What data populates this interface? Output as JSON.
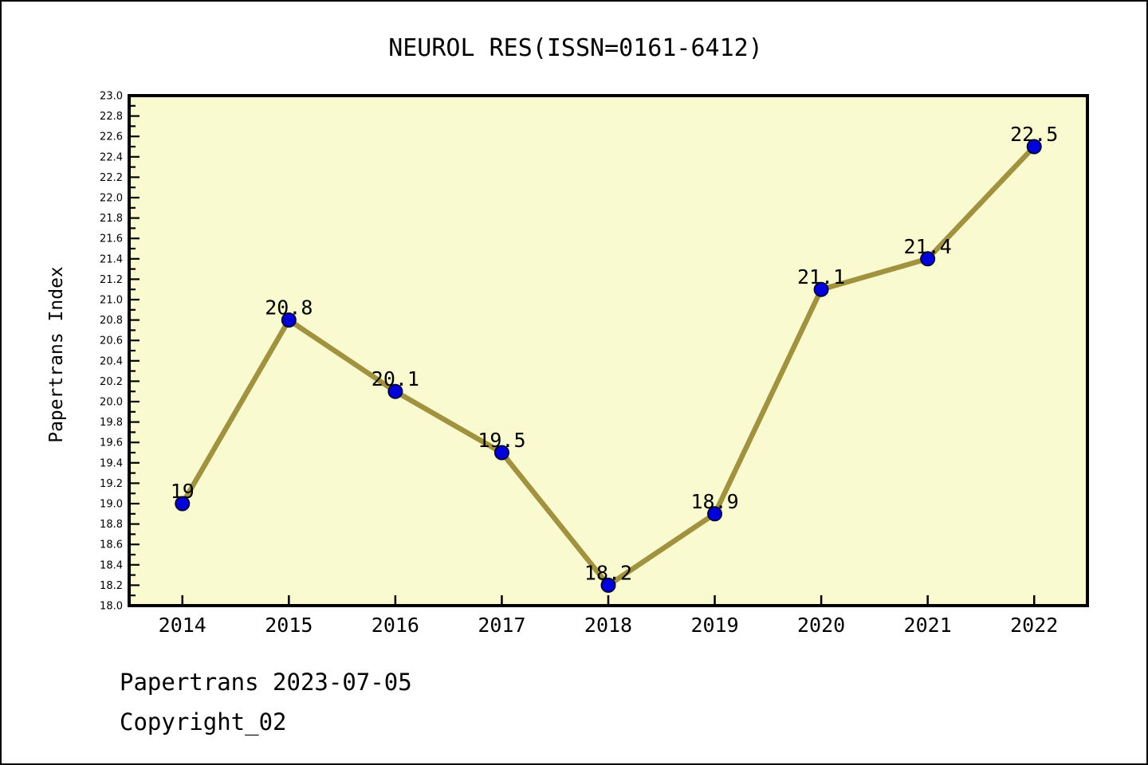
{
  "page": {
    "footer_line1": "Papertrans 2023-07-05",
    "footer_line2": "Copyright_02"
  },
  "chart_data": {
    "type": "line",
    "title": "NEUROL RES(ISSN=0161-6412)",
    "xlabel": "",
    "ylabel": "Papertrans Index",
    "x": [
      2014,
      2015,
      2016,
      2017,
      2018,
      2019,
      2020,
      2021,
      2022
    ],
    "values": [
      19.0,
      20.8,
      20.1,
      19.5,
      18.2,
      18.9,
      21.1,
      21.4,
      22.5
    ],
    "point_labels": [
      "19",
      "20.8",
      "20.1",
      "19.5",
      "18.2",
      "18.9",
      "21.1",
      "21.4",
      "22.5"
    ],
    "x_tick_labels": [
      "2014",
      "2015",
      "2016",
      "2017",
      "2018",
      "2019",
      "2020",
      "2021",
      "2022"
    ],
    "y_tick_labels": [
      "18.0",
      "18.2",
      "18.4",
      "18.6",
      "18.8",
      "19.0",
      "19.2",
      "19.4",
      "19.6",
      "19.8",
      "20.0",
      "20.2",
      "20.4",
      "20.6",
      "20.8",
      "21.0",
      "21.2",
      "21.4",
      "21.6",
      "21.8",
      "22.0",
      "22.2",
      "22.4",
      "22.6",
      "22.8",
      "23.0"
    ],
    "xlim": [
      2013.5,
      2022.5
    ],
    "ylim": [
      18.0,
      23.0
    ],
    "y_major_step": 0.2,
    "y_minor_step": 0.1,
    "grid": false,
    "legend": "none",
    "colors": {
      "plot_bg": "#FAFAD0",
      "line": "#A0923E",
      "marker_fill": "#0000DD",
      "marker_edge": "#000044",
      "axis": "#000000",
      "text": "#000000"
    }
  }
}
